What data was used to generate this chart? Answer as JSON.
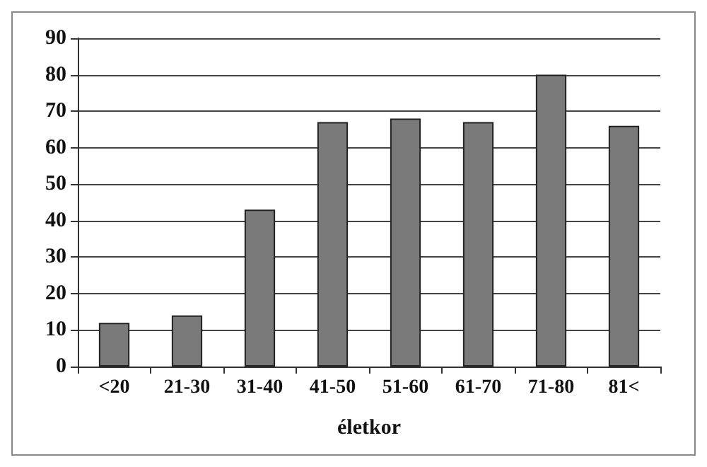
{
  "chart_data": {
    "type": "bar",
    "xlabel": "életkor",
    "categories": [
      "<20",
      "21-30",
      "31-40",
      "41-50",
      "51-60",
      "61-70",
      "71-80",
      "81<"
    ],
    "values": [
      12,
      14,
      43,
      67,
      68,
      67,
      80,
      66
    ],
    "color": "#7a7a7a",
    "ylim": [
      0,
      90
    ],
    "yticks": [
      0,
      10,
      20,
      30,
      40,
      50,
      60,
      70,
      80,
      90
    ],
    "grid": "y"
  }
}
